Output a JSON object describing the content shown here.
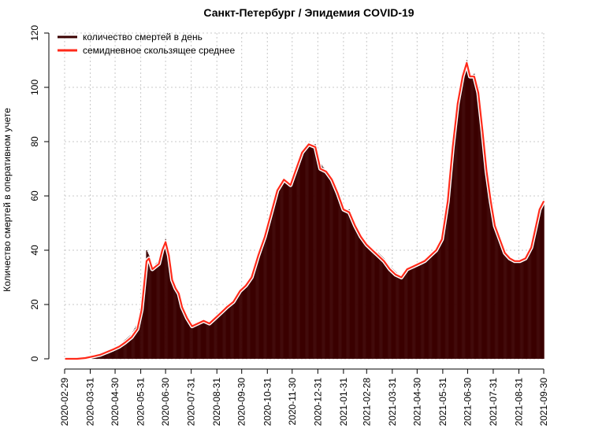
{
  "chart_data": {
    "type": "bar",
    "title": "Санкт-Петербург / Эпидемия COVID-19",
    "xlabel": "",
    "ylabel": "Количество смертей в оперативном учете",
    "x_range": [
      "2020-02-29",
      "2021-09-30"
    ],
    "ylim": [
      0,
      120
    ],
    "y_ticks": [
      0,
      20,
      40,
      60,
      80,
      100,
      120
    ],
    "x_ticks": [
      "2020-02-29",
      "2020-03-31",
      "2020-04-30",
      "2020-05-31",
      "2020-06-30",
      "2020-07-31",
      "2020-08-31",
      "2020-09-30",
      "2020-10-31",
      "2020-11-30",
      "2020-12-31",
      "2021-01-31",
      "2021-02-28",
      "2021-03-31",
      "2021-04-30",
      "2021-05-31",
      "2021-06-30",
      "2021-07-31",
      "2021-08-31",
      "2021-09-30"
    ],
    "grid": true,
    "legend_position": "top-left",
    "colors": {
      "bars": "#3a0000",
      "average": "#ff2a1a",
      "average_outline": "#ffffff"
    },
    "series": [
      {
        "name": "количество смертей в день",
        "kind": "daily-bars",
        "points": [
          [
            "2020-03-01",
            0
          ],
          [
            "2020-03-15",
            0
          ],
          [
            "2020-03-25",
            0.5
          ],
          [
            "2020-04-05",
            1
          ],
          [
            "2020-04-12",
            2
          ],
          [
            "2020-04-20",
            3
          ],
          [
            "2020-04-28",
            4
          ],
          [
            "2020-05-05",
            5
          ],
          [
            "2020-05-12",
            7
          ],
          [
            "2020-05-20",
            9
          ],
          [
            "2020-05-27",
            13
          ],
          [
            "2020-06-01",
            22
          ],
          [
            "2020-06-04",
            30
          ],
          [
            "2020-06-07",
            40
          ],
          [
            "2020-06-10",
            38
          ],
          [
            "2020-06-14",
            33
          ],
          [
            "2020-06-18",
            35
          ],
          [
            "2020-06-22",
            36
          ],
          [
            "2020-06-26",
            40
          ],
          [
            "2020-06-30",
            44
          ],
          [
            "2020-07-04",
            38
          ],
          [
            "2020-07-08",
            30
          ],
          [
            "2020-07-12",
            26
          ],
          [
            "2020-07-16",
            24
          ],
          [
            "2020-07-20",
            20
          ],
          [
            "2020-07-26",
            15
          ],
          [
            "2020-08-01",
            13
          ],
          [
            "2020-08-08",
            13
          ],
          [
            "2020-08-15",
            14
          ],
          [
            "2020-08-22",
            13
          ],
          [
            "2020-08-29",
            15
          ],
          [
            "2020-09-05",
            17
          ],
          [
            "2020-09-12",
            19
          ],
          [
            "2020-09-20",
            21
          ],
          [
            "2020-09-28",
            25
          ],
          [
            "2020-10-05",
            27
          ],
          [
            "2020-10-12",
            30
          ],
          [
            "2020-10-20",
            38
          ],
          [
            "2020-10-28",
            45
          ],
          [
            "2020-11-05",
            54
          ],
          [
            "2020-11-12",
            62
          ],
          [
            "2020-11-20",
            66
          ],
          [
            "2020-11-28",
            65
          ],
          [
            "2020-12-05",
            70
          ],
          [
            "2020-12-12",
            76
          ],
          [
            "2020-12-20",
            79
          ],
          [
            "2020-12-28",
            79
          ],
          [
            "2021-01-03",
            72
          ],
          [
            "2021-01-10",
            69
          ],
          [
            "2021-01-17",
            67
          ],
          [
            "2021-01-24",
            62
          ],
          [
            "2021-01-31",
            55
          ],
          [
            "2021-02-07",
            55
          ],
          [
            "2021-02-14",
            50
          ],
          [
            "2021-02-21",
            45
          ],
          [
            "2021-02-28",
            43
          ],
          [
            "2021-03-07",
            40
          ],
          [
            "2021-03-14",
            39
          ],
          [
            "2021-03-21",
            37
          ],
          [
            "2021-03-28",
            34
          ],
          [
            "2021-04-04",
            32
          ],
          [
            "2021-04-11",
            30
          ],
          [
            "2021-04-18",
            33
          ],
          [
            "2021-04-25",
            34
          ],
          [
            "2021-05-02",
            35
          ],
          [
            "2021-05-09",
            36
          ],
          [
            "2021-05-16",
            39
          ],
          [
            "2021-05-23",
            40
          ],
          [
            "2021-05-30",
            44
          ],
          [
            "2021-06-06",
            60
          ],
          [
            "2021-06-12",
            80
          ],
          [
            "2021-06-18",
            95
          ],
          [
            "2021-06-24",
            105
          ],
          [
            "2021-06-29",
            110
          ],
          [
            "2021-07-03",
            104
          ],
          [
            "2021-07-08",
            105
          ],
          [
            "2021-07-13",
            100
          ],
          [
            "2021-07-18",
            85
          ],
          [
            "2021-07-23",
            70
          ],
          [
            "2021-07-28",
            60
          ],
          [
            "2021-08-02",
            50
          ],
          [
            "2021-08-08",
            45
          ],
          [
            "2021-08-14",
            40
          ],
          [
            "2021-08-20",
            37
          ],
          [
            "2021-08-26",
            36
          ],
          [
            "2021-09-01",
            36
          ],
          [
            "2021-09-08",
            38
          ],
          [
            "2021-09-15",
            42
          ],
          [
            "2021-09-20",
            48
          ],
          [
            "2021-09-25",
            55
          ],
          [
            "2021-09-30",
            58
          ]
        ]
      },
      {
        "name": "семидневное скользящее среднее",
        "kind": "moving-average",
        "points": [
          [
            "2020-03-01",
            0
          ],
          [
            "2020-03-15",
            0
          ],
          [
            "2020-03-25",
            0.3
          ],
          [
            "2020-04-05",
            1
          ],
          [
            "2020-04-12",
            1.5
          ],
          [
            "2020-04-20",
            2.5
          ],
          [
            "2020-04-28",
            3.5
          ],
          [
            "2020-05-05",
            4.5
          ],
          [
            "2020-05-12",
            6
          ],
          [
            "2020-05-20",
            8
          ],
          [
            "2020-05-27",
            11
          ],
          [
            "2020-06-01",
            18
          ],
          [
            "2020-06-04",
            27
          ],
          [
            "2020-06-07",
            36
          ],
          [
            "2020-06-10",
            37
          ],
          [
            "2020-06-14",
            33
          ],
          [
            "2020-06-18",
            34
          ],
          [
            "2020-06-22",
            35
          ],
          [
            "2020-06-26",
            40
          ],
          [
            "2020-06-30",
            43
          ],
          [
            "2020-07-04",
            38
          ],
          [
            "2020-07-08",
            29
          ],
          [
            "2020-07-12",
            26
          ],
          [
            "2020-07-16",
            24
          ],
          [
            "2020-07-20",
            19
          ],
          [
            "2020-07-26",
            15
          ],
          [
            "2020-08-01",
            12
          ],
          [
            "2020-08-08",
            13
          ],
          [
            "2020-08-15",
            14
          ],
          [
            "2020-08-22",
            13
          ],
          [
            "2020-08-29",
            15
          ],
          [
            "2020-09-05",
            17
          ],
          [
            "2020-09-12",
            19
          ],
          [
            "2020-09-20",
            21
          ],
          [
            "2020-09-28",
            25
          ],
          [
            "2020-10-05",
            27
          ],
          [
            "2020-10-12",
            30
          ],
          [
            "2020-10-20",
            38
          ],
          [
            "2020-10-28",
            45
          ],
          [
            "2020-11-05",
            54
          ],
          [
            "2020-11-12",
            62
          ],
          [
            "2020-11-20",
            66
          ],
          [
            "2020-11-28",
            64
          ],
          [
            "2020-12-05",
            70
          ],
          [
            "2020-12-12",
            76
          ],
          [
            "2020-12-20",
            79
          ],
          [
            "2020-12-28",
            78
          ],
          [
            "2021-01-03",
            70
          ],
          [
            "2021-01-10",
            69
          ],
          [
            "2021-01-17",
            66
          ],
          [
            "2021-01-24",
            61
          ],
          [
            "2021-01-31",
            55
          ],
          [
            "2021-02-07",
            54
          ],
          [
            "2021-02-14",
            49
          ],
          [
            "2021-02-21",
            45
          ],
          [
            "2021-02-28",
            42
          ],
          [
            "2021-03-07",
            40
          ],
          [
            "2021-03-14",
            38
          ],
          [
            "2021-03-21",
            36
          ],
          [
            "2021-03-28",
            33
          ],
          [
            "2021-04-04",
            31
          ],
          [
            "2021-04-11",
            30
          ],
          [
            "2021-04-18",
            33
          ],
          [
            "2021-04-25",
            34
          ],
          [
            "2021-05-02",
            35
          ],
          [
            "2021-05-09",
            36
          ],
          [
            "2021-05-16",
            38
          ],
          [
            "2021-05-23",
            40
          ],
          [
            "2021-05-30",
            44
          ],
          [
            "2021-06-06",
            58
          ],
          [
            "2021-06-12",
            78
          ],
          [
            "2021-06-18",
            94
          ],
          [
            "2021-06-24",
            104
          ],
          [
            "2021-06-29",
            109
          ],
          [
            "2021-07-03",
            104
          ],
          [
            "2021-07-08",
            104
          ],
          [
            "2021-07-13",
            98
          ],
          [
            "2021-07-18",
            84
          ],
          [
            "2021-07-23",
            69
          ],
          [
            "2021-07-28",
            58
          ],
          [
            "2021-08-02",
            49
          ],
          [
            "2021-08-08",
            44
          ],
          [
            "2021-08-14",
            39
          ],
          [
            "2021-08-20",
            37
          ],
          [
            "2021-08-26",
            36
          ],
          [
            "2021-09-01",
            36
          ],
          [
            "2021-09-08",
            37
          ],
          [
            "2021-09-15",
            41
          ],
          [
            "2021-09-20",
            48
          ],
          [
            "2021-09-25",
            55
          ],
          [
            "2021-09-30",
            58
          ]
        ]
      }
    ]
  }
}
